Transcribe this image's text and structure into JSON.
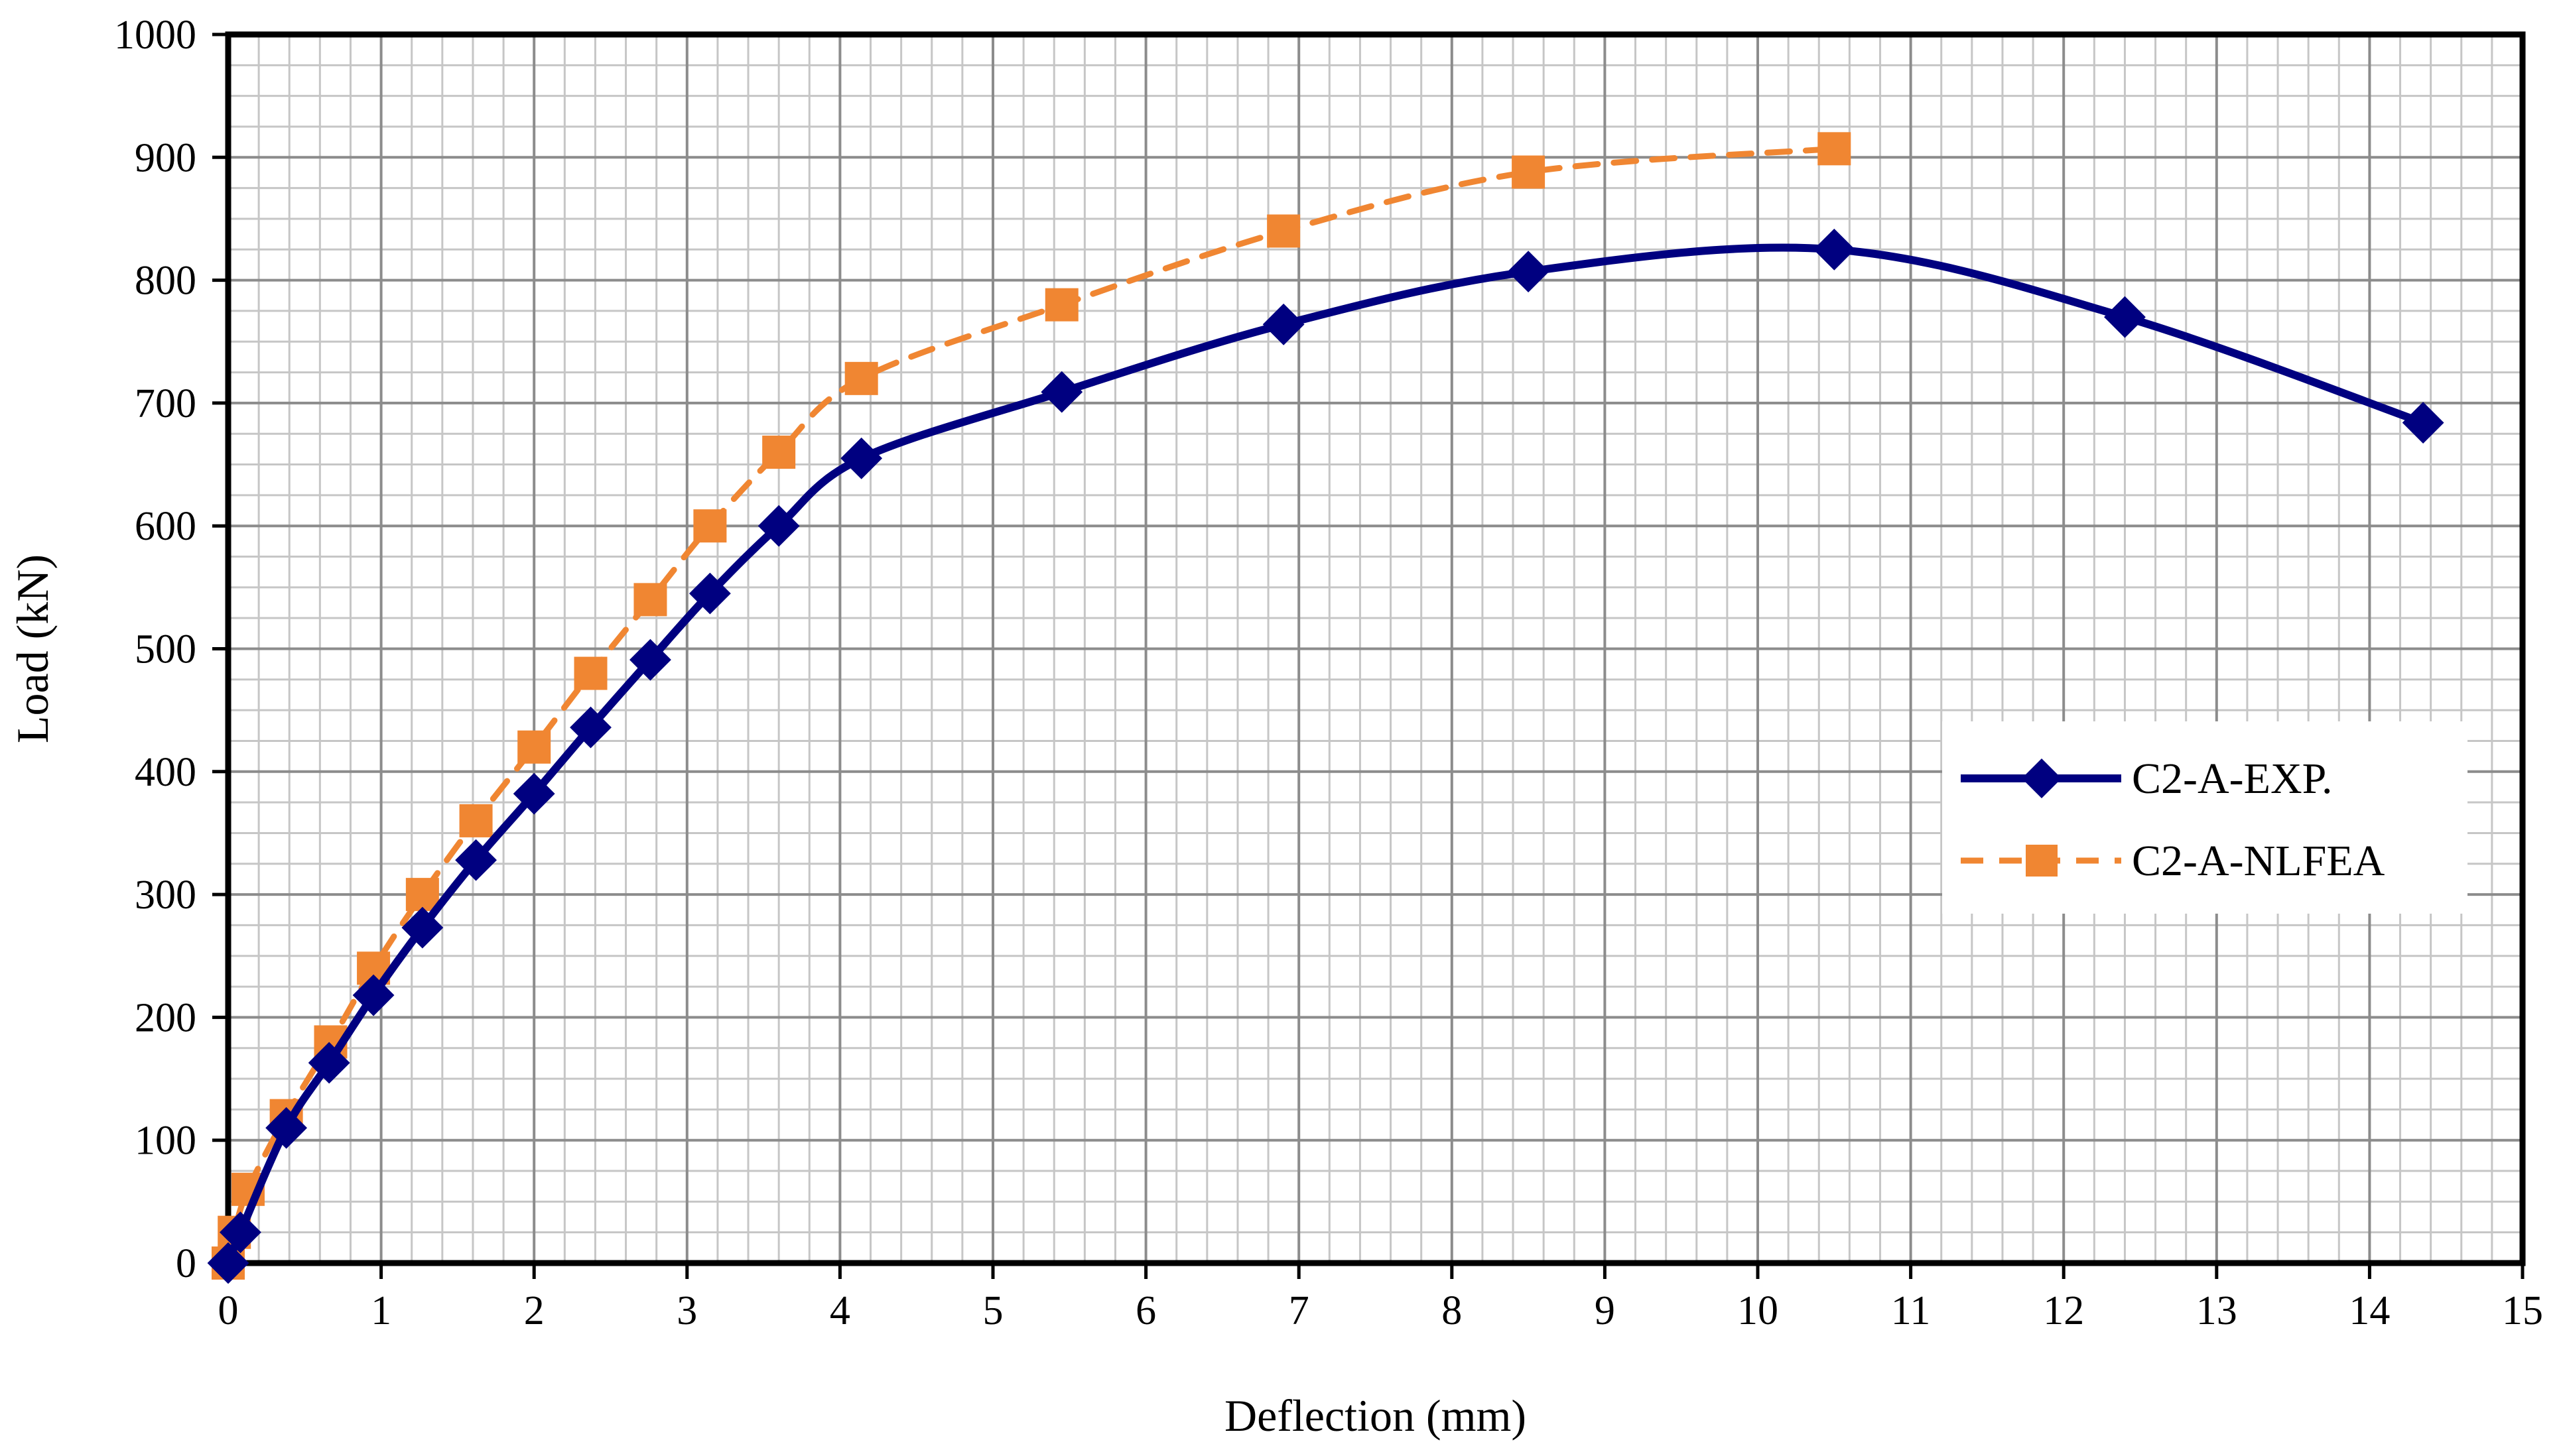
{
  "chart_data": {
    "type": "line",
    "title": "",
    "xlabel": "Deflection (mm)",
    "ylabel": "Load (kN)",
    "xlim": [
      0,
      15
    ],
    "ylim": [
      0,
      1000
    ],
    "xticks": [
      0,
      1,
      2,
      3,
      4,
      5,
      6,
      7,
      8,
      9,
      10,
      11,
      12,
      13,
      14,
      15
    ],
    "yticks": [
      0,
      100,
      200,
      300,
      400,
      500,
      600,
      700,
      800,
      900,
      1000
    ],
    "grid": true,
    "legend_position": "right",
    "series": [
      {
        "name": "C2-A-EXP.",
        "color": "#000080",
        "line_style": "solid",
        "marker": "diamond",
        "x": [
          0,
          0.08,
          0.38,
          0.66,
          0.95,
          1.27,
          1.62,
          2.0,
          2.37,
          2.76,
          3.15,
          3.6,
          4.14,
          5.45,
          6.9,
          8.5,
          10.5,
          12.4,
          14.35
        ],
        "y": [
          0,
          25,
          110,
          163,
          218,
          273,
          328,
          382,
          436,
          491,
          545,
          600,
          655,
          709,
          764,
          807,
          825,
          770,
          684
        ]
      },
      {
        "name": "C2-A-NLFEA",
        "color": "#F08632",
        "line_style": "dashed",
        "marker": "square",
        "x": [
          0,
          0.04,
          0.13,
          0.38,
          0.67,
          0.95,
          1.27,
          1.62,
          2.0,
          2.37,
          2.76,
          3.15,
          3.6,
          4.14,
          5.45,
          6.9,
          8.5,
          10.5
        ],
        "y": [
          0,
          25,
          60,
          120,
          180,
          240,
          300,
          360,
          420,
          480,
          540,
          600,
          660,
          720,
          780,
          840,
          888,
          907
        ]
      }
    ]
  }
}
